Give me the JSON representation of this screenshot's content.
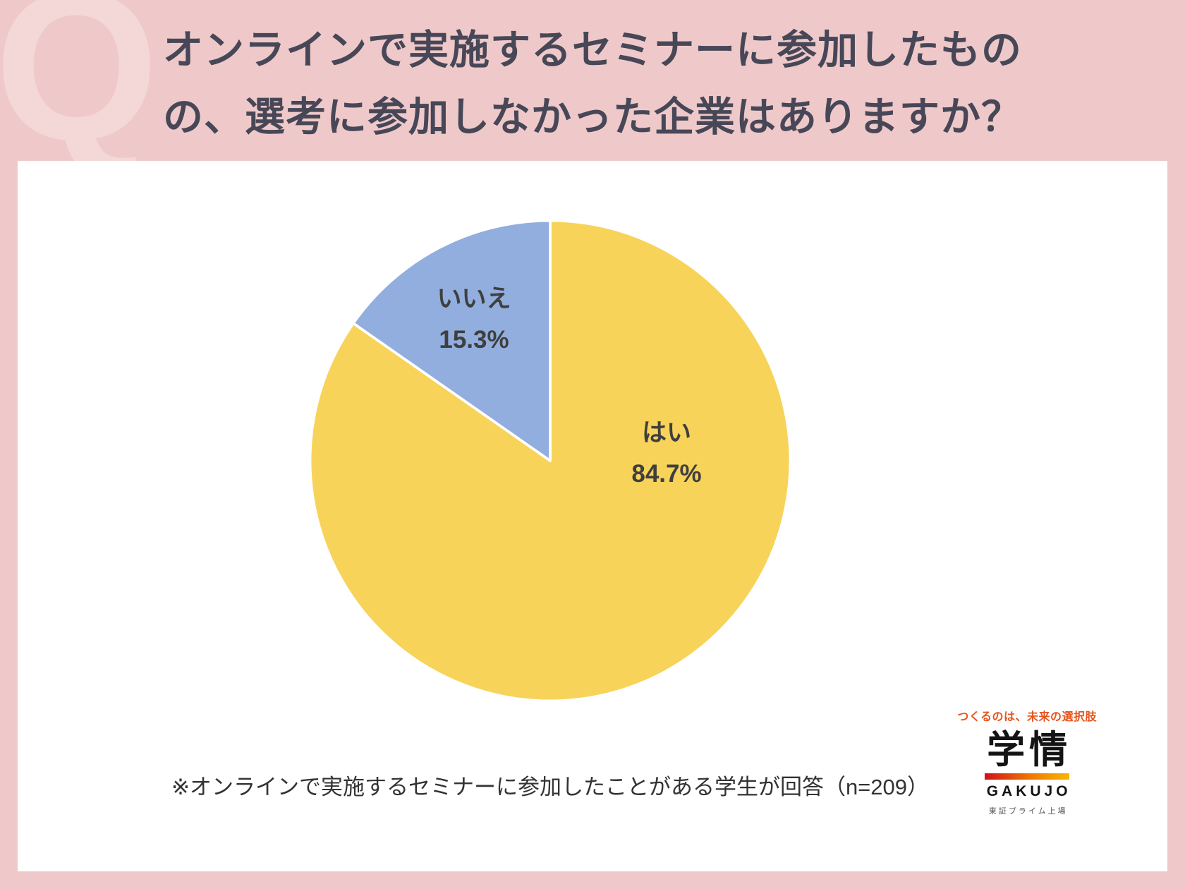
{
  "page": {
    "q_watermark": "Q",
    "title_line1": "オンラインで実施するセミナーに参加したもの",
    "title_line2": "の、選考に参加しなかった企業はありますか？",
    "note": "※オンラインで実施するセミナーに参加したことがある学生が回答（n=209）"
  },
  "chart_data": {
    "type": "pie",
    "title": "オンラインで実施するセミナーに参加したものの、選考に参加しなかった企業はありますか？",
    "categories": [
      "はい",
      "いいえ"
    ],
    "values": [
      84.7,
      15.3
    ],
    "unit": "%",
    "colors": [
      "#f8d35a",
      "#92aede"
    ],
    "start_angle_deg": 0,
    "direction": "clockwise",
    "slice_border_color": "#ffffff",
    "legend_position": "none",
    "labels": [
      {
        "name": "はい",
        "value_text": "84.7%"
      },
      {
        "name": "いいえ",
        "value_text": "15.3%"
      }
    ],
    "sample_note": "オンラインで実施するセミナーに参加したことがある学生が回答",
    "n": 209
  },
  "logo": {
    "tagline": "つくるのは、未来の選択肢",
    "brand": "学情",
    "brand_en": "GAKUJO",
    "listing": "東証プライム上場",
    "tagline_color": "#e8541c"
  }
}
